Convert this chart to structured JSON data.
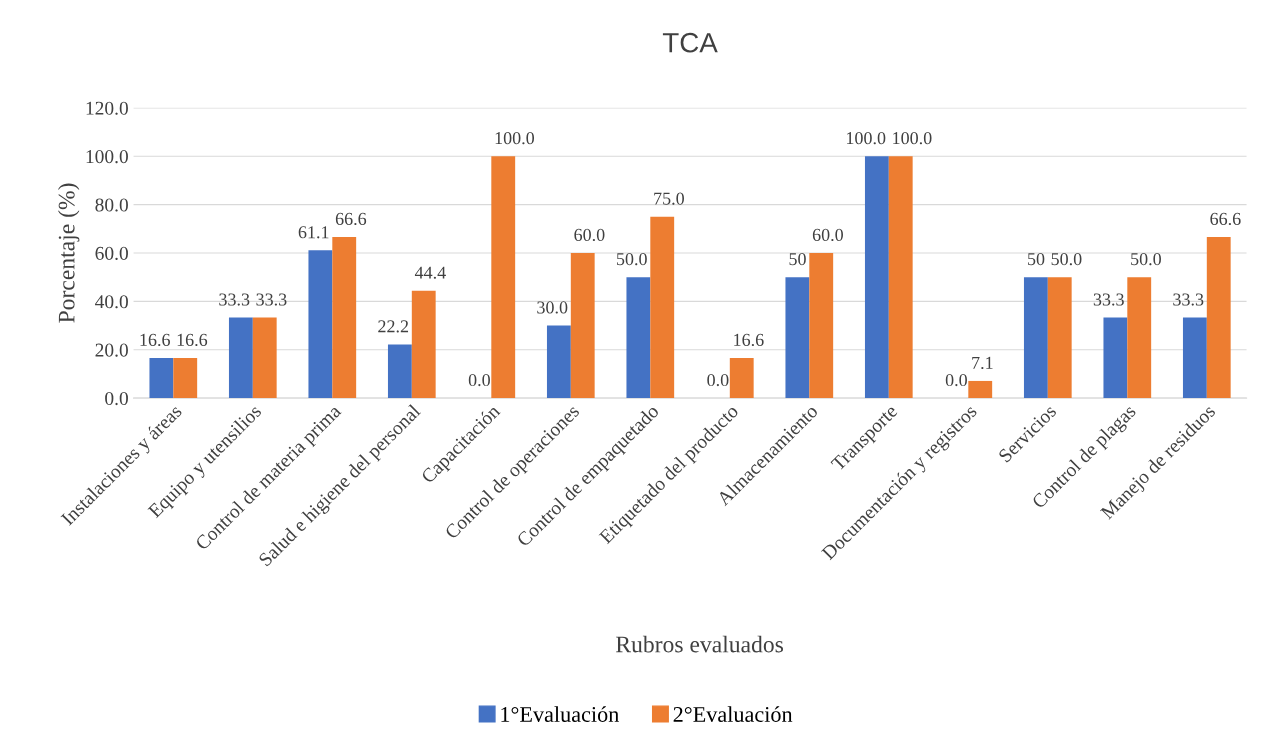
{
  "chart_data": {
    "type": "bar",
    "title": "TCA",
    "xlabel": "Rubros evaluados",
    "ylabel": "Porcentaje (%)",
    "categories": [
      "Instalaciones y áreas",
      "Equipo y utensilios",
      "Control de materia prima",
      "Salud e higiene del personal",
      "Capacitación",
      "Control de operaciones",
      "Control de empaquetado",
      "Etiquetado del producto",
      "Almacenamiento",
      "Transporte",
      "Documentación y registros",
      "Servicios",
      "Control de plagas",
      "Manejo de residuos"
    ],
    "series": [
      {
        "name": "1°Evaluación",
        "color": "#4472c4",
        "values": [
          16.6,
          33.3,
          61.1,
          22.2,
          0.0,
          30.0,
          50.0,
          0.0,
          50,
          100.0,
          0.0,
          50,
          33.3,
          33.3
        ],
        "value_labels": [
          "16.6",
          "33.3",
          "61.1",
          "22.2",
          "0.0",
          "30.0",
          "50.0",
          "0.0",
          "50",
          "100.0",
          "0.0",
          "50",
          "33.3",
          "33.3"
        ]
      },
      {
        "name": "2°Evaluación",
        "color": "#ed7d31",
        "values": [
          16.6,
          33.3,
          66.6,
          44.4,
          100.0,
          60.0,
          75.0,
          16.6,
          60.0,
          100.0,
          7.1,
          50.0,
          50.0,
          66.6
        ],
        "value_labels": [
          "16.6",
          "33.3",
          "66.6",
          "44.4",
          "100.0",
          "60.0",
          "75.0",
          "16.6",
          "60.0",
          "100.0",
          "7.1",
          "50.0",
          "50.0",
          "66.6"
        ]
      }
    ],
    "ylim": [
      0,
      120
    ],
    "yticks": [
      {
        "value": 0,
        "label": "0.0"
      },
      {
        "value": 20,
        "label": "20.0"
      },
      {
        "value": 40,
        "label": "40.0"
      },
      {
        "value": 60,
        "label": "60.0"
      },
      {
        "value": 80,
        "label": "80.0"
      },
      {
        "value": 100,
        "label": "100.0"
      },
      {
        "value": 120,
        "label": "120.0"
      }
    ],
    "grid": "y",
    "legend": "bottom"
  }
}
